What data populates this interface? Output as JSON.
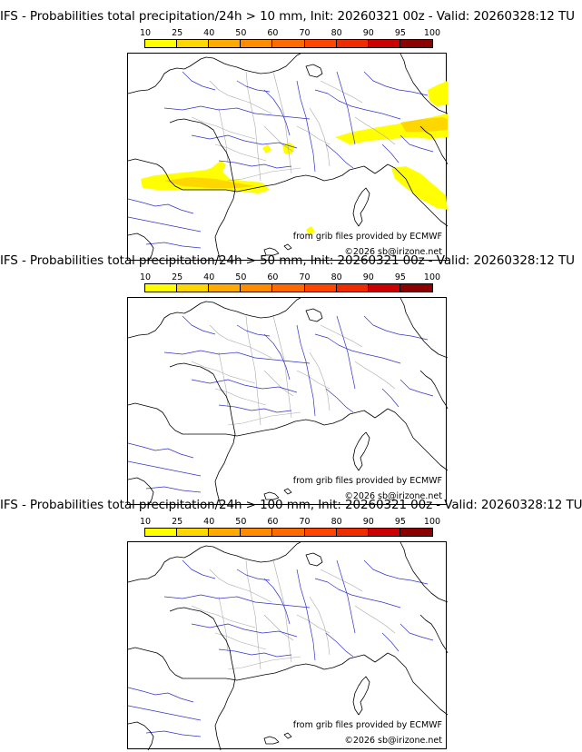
{
  "colorbar": {
    "ticks": [
      "10",
      "25",
      "40",
      "50",
      "60",
      "70",
      "80",
      "90",
      "95",
      "100"
    ],
    "colors": [
      "#ffff00",
      "#ffd700",
      "#ffaa00",
      "#ff8c00",
      "#ff6a00",
      "#ff4500",
      "#ee2c00",
      "#cc0000",
      "#8b0000"
    ]
  },
  "panels": [
    {
      "title": "IFS - Probabilities total precipitation/24h > 10 mm, Init: 20260321 00z - Valid: 20260328:12 TU",
      "source_credit": "from grib files provided by ECMWF",
      "copyright": "©2026 sb@irizone.net",
      "has_precip": true
    },
    {
      "title": "IFS - Probabilities total precipitation/24h > 50 mm, Init: 20260321 00z - Valid: 20260328:12 TU",
      "source_credit": "from grib files provided by ECMWF",
      "copyright": "©2026 sb@irizone.net",
      "has_precip": false
    },
    {
      "title": "IFS - Probabilities total precipitation/24h > 100 mm, Init: 20260321 00z - Valid: 20260328:12 TU",
      "source_credit": "from grib files provided by ECMWF",
      "copyright": "©2026 sb@irizone.net",
      "has_precip": false
    }
  ],
  "style": {
    "coast_color": "#000000",
    "river_color": "#3333cc",
    "border_color": "#aaaaaa",
    "precip_color": "#ffff00",
    "precip_high_color": "#ffd700"
  }
}
